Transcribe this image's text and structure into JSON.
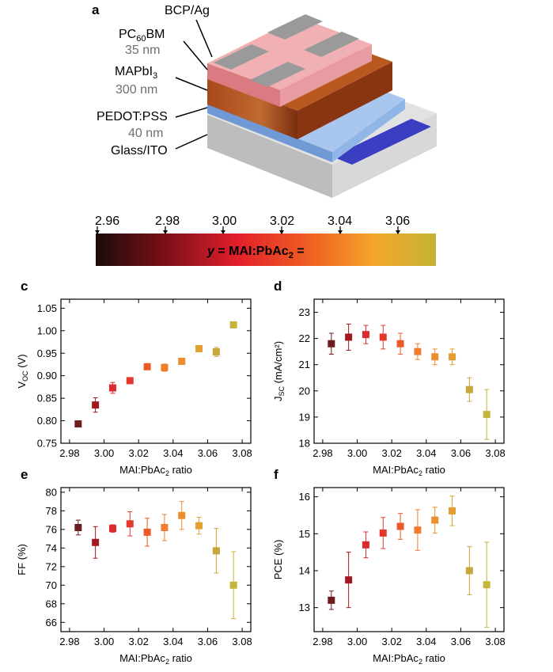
{
  "panel_a": {
    "label": "a",
    "layers": [
      {
        "name": "BCP/Ag",
        "thickness": ""
      },
      {
        "name": "PC",
        "name_sub": "60",
        "name_tail": "BM",
        "thickness": "35 nm"
      },
      {
        "name": "MAPbI",
        "name_sub": "3",
        "name_tail": "",
        "thickness": "300 nm"
      },
      {
        "name": "PEDOT:PSS",
        "thickness": "40 nm"
      },
      {
        "name": "Glass/ITO",
        "thickness": ""
      }
    ],
    "colors": {
      "pcbm": "#e58a8f",
      "mapbi": "#a8491c",
      "pedot": "#7aa6de",
      "glass": "#d2d2d2",
      "ito": "#3a3ec0",
      "ag": "#8f8f8f"
    }
  },
  "colorbar": {
    "ticks": [
      "2.96",
      "2.98",
      "3.00",
      "3.02",
      "3.04",
      "3.06"
    ],
    "label_y": "y",
    "label_eq": " = MAI:PbAc",
    "label_sub": "2",
    "label_tail": " =",
    "gradient_colors": [
      "#1a0c0c",
      "#7a0f17",
      "#e3202a",
      "#f06a22",
      "#f5a72c",
      "#c4b333"
    ]
  },
  "chart_data": [
    {
      "type": "scatter",
      "label": "c",
      "ylabel_main": "V",
      "ylabel_sub": "OC",
      "ylabel_tail": " (V)",
      "xlabel_main": "MAI:PbAc",
      "xlabel_sub": "2",
      "xlabel_tail": " ratio",
      "xlim": [
        2.975,
        3.085
      ],
      "ylim": [
        0.75,
        1.07
      ],
      "xticks": [
        2.98,
        3.0,
        3.02,
        3.04,
        3.06,
        3.08
      ],
      "xticklabels": [
        "2.98",
        "3.00",
        "3.02",
        "3.04",
        "3.06",
        "3.08"
      ],
      "yticks": [
        0.75,
        0.8,
        0.85,
        0.9,
        0.95,
        1.0,
        1.05
      ],
      "yticklabels": [
        "0.75",
        "0.80",
        "0.85",
        "0.90",
        "0.95",
        "1.00",
        "1.05"
      ],
      "x": [
        2.985,
        2.995,
        3.005,
        3.015,
        3.025,
        3.035,
        3.045,
        3.055,
        3.065,
        3.075
      ],
      "y": [
        0.793,
        0.835,
        0.873,
        0.889,
        0.92,
        0.918,
        0.932,
        0.96,
        0.953,
        1.013
      ],
      "err": [
        0.004,
        0.016,
        0.012,
        0.004,
        0.004,
        0.008,
        0.005,
        0.006,
        0.01,
        0.004
      ]
    },
    {
      "type": "scatter",
      "label": "d",
      "ylabel_main": "J",
      "ylabel_sub": "SC",
      "ylabel_tail": " (mA/cm²)",
      "xlabel_main": "MAI:PbAc",
      "xlabel_sub": "2",
      "xlabel_tail": " ratio",
      "xlim": [
        2.975,
        3.085
      ],
      "ylim": [
        18,
        23.5
      ],
      "xticks": [
        2.98,
        3.0,
        3.02,
        3.04,
        3.06,
        3.08
      ],
      "xticklabels": [
        "2.98",
        "3.00",
        "3.02",
        "3.04",
        "3.06",
        "3.08"
      ],
      "yticks": [
        18,
        19,
        20,
        21,
        22,
        23
      ],
      "yticklabels": [
        "18",
        "19",
        "20",
        "21",
        "22",
        "23"
      ],
      "x": [
        2.985,
        2.995,
        3.005,
        3.015,
        3.025,
        3.035,
        3.045,
        3.055,
        3.065,
        3.075
      ],
      "y": [
        21.8,
        22.05,
        22.15,
        22.05,
        21.8,
        21.5,
        21.3,
        21.3,
        20.05,
        19.1
      ],
      "err": [
        0.4,
        0.5,
        0.35,
        0.45,
        0.4,
        0.3,
        0.3,
        0.3,
        0.45,
        0.95
      ]
    },
    {
      "type": "scatter",
      "label": "e",
      "ylabel_main": "FF (%)",
      "ylabel_sub": "",
      "ylabel_tail": "",
      "xlabel_main": "MAI:PbAc",
      "xlabel_sub": "2",
      "xlabel_tail": " ratio",
      "xlim": [
        2.975,
        3.085
      ],
      "ylim": [
        65,
        80.5
      ],
      "xticks": [
        2.98,
        3.0,
        3.02,
        3.04,
        3.06,
        3.08
      ],
      "xticklabels": [
        "2.98",
        "3.00",
        "3.02",
        "3.04",
        "3.06",
        "3.08"
      ],
      "yticks": [
        66,
        68,
        70,
        72,
        74,
        76,
        78,
        80
      ],
      "yticklabels": [
        "66",
        "68",
        "70",
        "72",
        "74",
        "76",
        "78",
        "80"
      ],
      "x": [
        2.985,
        2.995,
        3.005,
        3.015,
        3.025,
        3.035,
        3.045,
        3.055,
        3.065,
        3.075
      ],
      "y": [
        76.2,
        74.6,
        76.1,
        76.6,
        75.7,
        76.2,
        77.5,
        76.4,
        73.7,
        70.0
      ],
      "err": [
        0.8,
        1.7,
        0.4,
        1.3,
        1.5,
        1.4,
        1.5,
        0.9,
        2.4,
        3.6
      ]
    },
    {
      "type": "scatter",
      "label": "f",
      "ylabel_main": "PCE (%)",
      "ylabel_sub": "",
      "ylabel_tail": "",
      "xlabel_main": "MAI:PbAc",
      "xlabel_sub": "2",
      "xlabel_tail": " ratio",
      "xlim": [
        2.975,
        3.085
      ],
      "ylim": [
        12.35,
        16.25
      ],
      "xticks": [
        2.98,
        3.0,
        3.02,
        3.04,
        3.06,
        3.08
      ],
      "xticklabels": [
        "2.98",
        "3.00",
        "3.02",
        "3.04",
        "3.06",
        "3.08"
      ],
      "yticks": [
        13,
        14,
        15,
        16
      ],
      "yticklabels": [
        "13",
        "14",
        "15",
        "16"
      ],
      "x": [
        2.985,
        2.995,
        3.005,
        3.015,
        3.025,
        3.035,
        3.045,
        3.055,
        3.065,
        3.075
      ],
      "y": [
        13.2,
        13.75,
        14.7,
        15.02,
        15.2,
        15.1,
        15.37,
        15.62,
        14.0,
        13.62
      ],
      "err": [
        0.25,
        0.75,
        0.35,
        0.42,
        0.35,
        0.55,
        0.35,
        0.4,
        0.65,
        1.15
      ]
    }
  ],
  "point_colors": [
    "#6e1c1c",
    "#a01820",
    "#dc2a2e",
    "#e4382e",
    "#ec5a2a",
    "#f07c2c",
    "#ec8e30",
    "#e2a032",
    "#c8a63a",
    "#c4b43c"
  ]
}
